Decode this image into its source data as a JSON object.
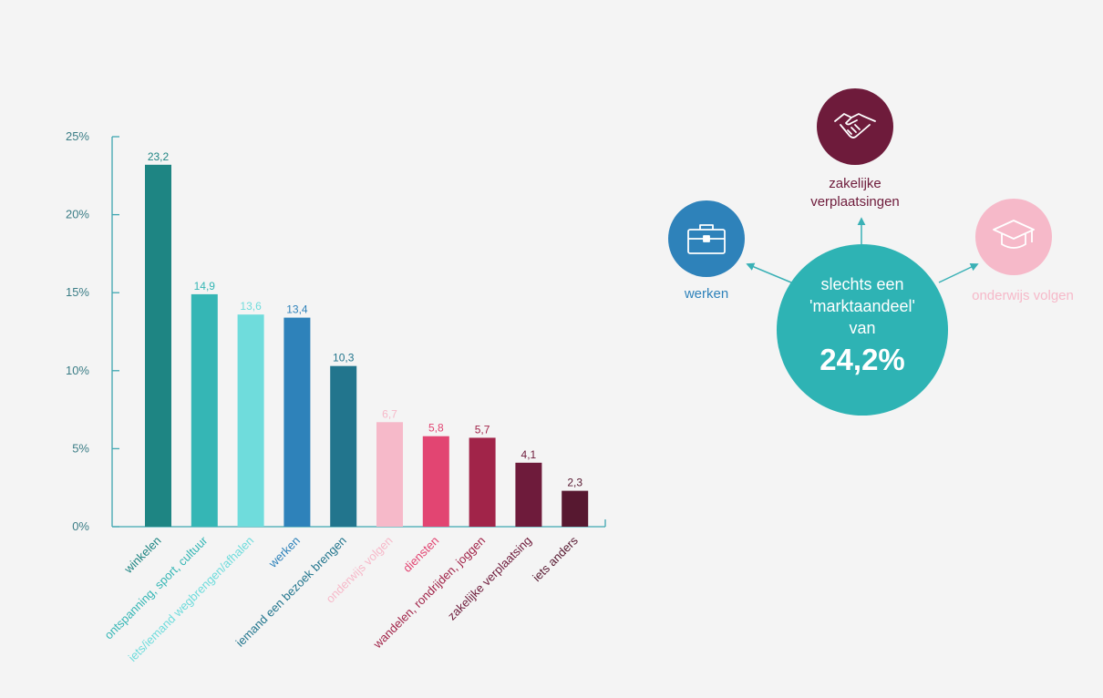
{
  "chart_data": {
    "type": "bar",
    "categories": [
      "winkelen",
      "ontspanning, sport, cultuur",
      "iets/iemand wegbrengen/afhalen",
      "werken",
      "iemand een bezoek brengen",
      "onderwijs volgen",
      "diensten",
      "wandelen, rondrijden, joggen",
      "zakelijke verplaatsing",
      "iets anders"
    ],
    "values": [
      23.2,
      14.9,
      13.6,
      13.4,
      10.3,
      6.7,
      5.8,
      5.7,
      4.1,
      2.3
    ],
    "value_labels": [
      "23,2",
      "14,9",
      "13,6",
      "13,4",
      "10,3",
      "6,7",
      "5,8",
      "5,7",
      "4,1",
      "2,3"
    ],
    "colors": [
      "#1e8583",
      "#35b6b5",
      "#6fdcdc",
      "#2e82ba",
      "#22758d",
      "#f6b9c9",
      "#e24572",
      "#a12449",
      "#6e1b3b",
      "#571830"
    ],
    "yticks": [
      "0%",
      "5%",
      "10%",
      "15%",
      "20%",
      "25%"
    ],
    "ylim": [
      0,
      25
    ],
    "title": "",
    "xlabel": "",
    "ylabel": "",
    "grid": false
  },
  "diagram": {
    "center": {
      "line1": "slechts een",
      "line2": "'marktaandeel'",
      "line3": "van",
      "value": "24,2%"
    },
    "nodes": {
      "zakelijke": {
        "label_line1": "zakelijke",
        "label_line2": "verplaatsingen",
        "icon": "handshake-icon",
        "color": "#6e1b3b"
      },
      "werken": {
        "label": "werken",
        "icon": "briefcase-icon",
        "color": "#2e82ba"
      },
      "onderwijs": {
        "label": "onderwijs volgen",
        "icon": "graduation-cap-icon",
        "color": "#f6b9c9"
      }
    }
  }
}
